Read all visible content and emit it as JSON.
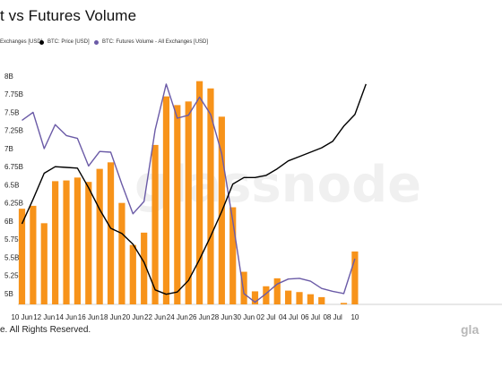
{
  "title": "t vs Futures Volume",
  "legend": [
    {
      "label": "Exchanges [USD]",
      "color": "#f7931a"
    },
    {
      "label": "BTC: Price [USD]",
      "color": "#000000"
    },
    {
      "label": "BTC: Futures Volume - All Exchanges [USD]",
      "color": "#6b5ba7"
    }
  ],
  "footer": "e. All Rights Reserved.",
  "brand": "gla",
  "watermark": "glassnode",
  "chart_data": {
    "type": "bar",
    "x_tick_labels": [
      "10 Jun",
      "12 Jun",
      "14 Jun",
      "16 Jun",
      "18 Jun",
      "20 Jun",
      "22 Jun",
      "24 Jun",
      "26 Jun",
      "28 Jun",
      "30 Jun",
      "02 Jul",
      "04 Jul",
      "06 Jul",
      "08 Jul",
      "10"
    ],
    "y_tick_labels": [
      "8B",
      "7.75B",
      "7.5B",
      "7.25B",
      "7B",
      "6.75B",
      "6.5B",
      "6.25B",
      "6B",
      "5.75B",
      "5.5B",
      "5.25B",
      "5B"
    ],
    "ylim": [
      4.85,
      8.0
    ],
    "series": [
      {
        "name": "Exchanges [USD]",
        "type": "bar",
        "color": "#f7931a",
        "values": [
          6.17,
          6.21,
          5.97,
          6.55,
          6.56,
          6.6,
          6.54,
          6.72,
          6.81,
          6.25,
          5.67,
          5.84,
          7.05,
          7.72,
          7.6,
          7.65,
          7.93,
          7.83,
          7.44,
          6.19,
          5.3,
          5.03,
          5.1,
          5.21,
          5.04,
          5.02,
          4.99,
          4.95,
          4.85,
          4.87,
          5.58
        ]
      },
      {
        "name": "BTC: Price [USD]",
        "type": "line",
        "color": "#000000",
        "values": [
          5.96,
          6.3,
          6.66,
          6.75,
          6.74,
          6.73,
          6.46,
          6.16,
          5.9,
          5.83,
          5.68,
          5.43,
          5.05,
          4.99,
          5.02,
          5.18,
          5.47,
          5.79,
          6.13,
          6.51,
          6.6,
          6.6,
          6.63,
          6.72,
          6.83,
          6.89,
          6.95,
          7.01,
          7.1,
          7.31,
          7.47,
          7.89
        ]
      },
      {
        "name": "BTC: Futures Volume - All Exchanges [USD]",
        "type": "line",
        "color": "#6b5ba7",
        "values": [
          7.39,
          7.5,
          7.0,
          7.33,
          7.18,
          7.14,
          6.76,
          6.96,
          6.95,
          6.51,
          6.1,
          6.27,
          7.26,
          7.89,
          7.42,
          7.46,
          7.71,
          7.47,
          6.93,
          6.0,
          5.0,
          4.88,
          5.0,
          5.13,
          5.2,
          5.21,
          5.17,
          5.07,
          5.03,
          5.0,
          5.48
        ]
      }
    ]
  }
}
